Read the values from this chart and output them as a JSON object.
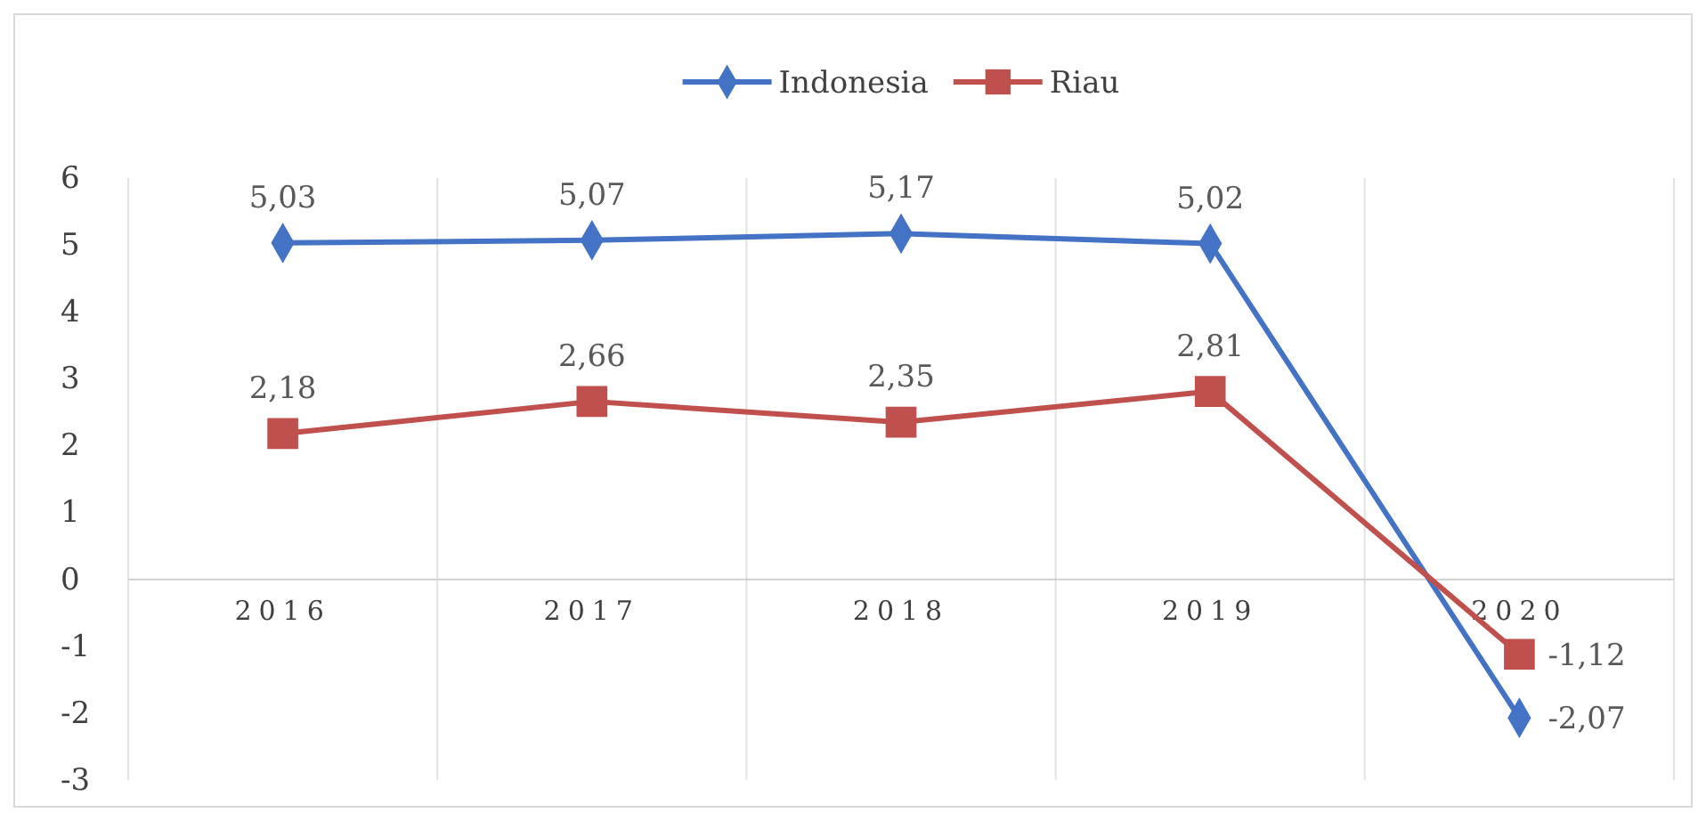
{
  "chart_data": {
    "type": "line",
    "categories": [
      "2016",
      "2017",
      "2018",
      "2019",
      "2020"
    ],
    "series": [
      {
        "name": "Indonesia",
        "color": "#4472c4",
        "marker": "diamond",
        "values": [
          5.03,
          5.07,
          5.17,
          5.02,
          -2.07
        ],
        "value_labels": [
          "5,03",
          "5,07",
          "5,17",
          "5,02",
          "-2,07"
        ]
      },
      {
        "name": "Riau",
        "color": "#c0504d",
        "marker": "square",
        "values": [
          2.18,
          2.66,
          2.35,
          2.81,
          -1.12
        ],
        "value_labels": [
          "2,18",
          "2,66",
          "2,35",
          "2,81",
          "-1,12"
        ]
      }
    ],
    "ylim": [
      -3,
      6
    ],
    "yticks": [
      -3,
      -2,
      -1,
      0,
      1,
      2,
      3,
      4,
      5,
      6
    ],
    "grid": "x",
    "legend": "top"
  }
}
